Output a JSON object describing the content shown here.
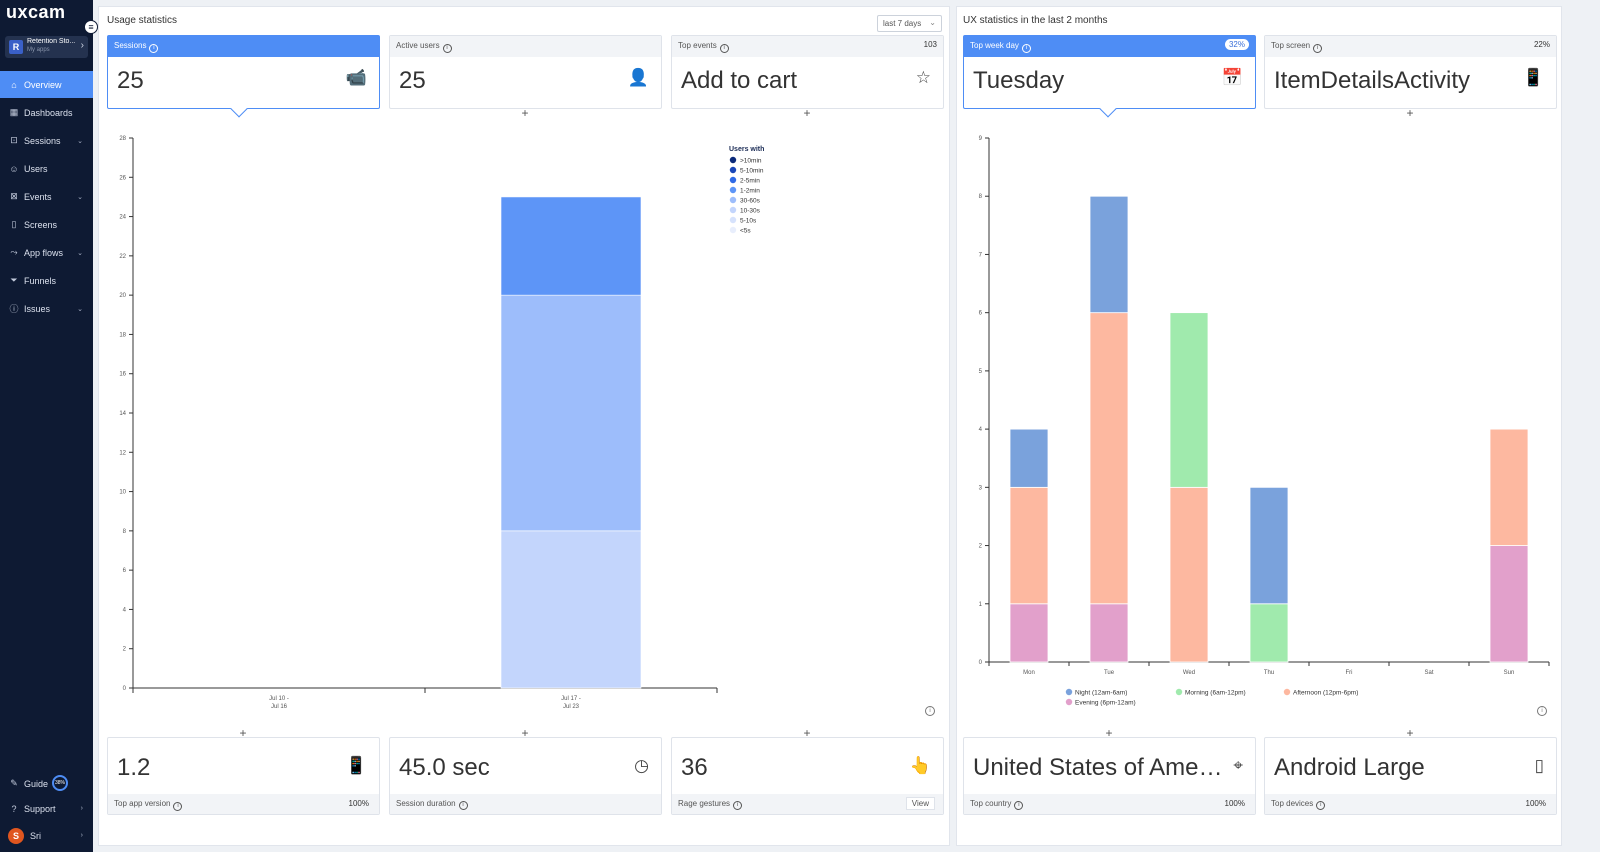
{
  "sidebar": {
    "logo": "uxcam",
    "app": {
      "initial": "R",
      "name": "Retention Sto...",
      "sub": "My apps"
    },
    "nav": [
      {
        "label": "Overview",
        "icon": "⌂",
        "icon_name": "home-icon",
        "active": true,
        "chevron": false
      },
      {
        "label": "Dashboards",
        "icon": "▦",
        "icon_name": "dashboard-icon",
        "chevron": false
      },
      {
        "label": "Sessions",
        "icon": "⊡",
        "icon_name": "sessions-icon",
        "chevron": true
      },
      {
        "label": "Users",
        "icon": "☺",
        "icon_name": "users-icon",
        "chevron": false
      },
      {
        "label": "Events",
        "icon": "⊠",
        "icon_name": "events-icon",
        "chevron": true
      },
      {
        "label": "Screens",
        "icon": "▯",
        "icon_name": "screens-icon",
        "chevron": false
      },
      {
        "label": "App flows",
        "icon": "⤳",
        "icon_name": "app-flows-icon",
        "chevron": true
      },
      {
        "label": "Funnels",
        "icon": "⏷",
        "icon_name": "funnels-icon",
        "chevron": false
      },
      {
        "label": "Issues",
        "icon": "ⓘ",
        "icon_name": "issues-icon",
        "chevron": true
      }
    ],
    "guide": {
      "label": "Guide",
      "pct": "38%"
    },
    "support": "Support",
    "user": {
      "initial": "S",
      "name": "Sri"
    }
  },
  "usage": {
    "title": "Usage statistics",
    "range": "last 7 days",
    "cards": [
      {
        "label": "Sessions",
        "value": "25",
        "pct": "",
        "icon": "📹",
        "icon_name": "camera-icon"
      },
      {
        "label": "Active users",
        "value": "25",
        "pct": "",
        "icon": "👤",
        "icon_name": "active-user-icon"
      },
      {
        "label": "Top events",
        "value": "Add to cart",
        "pct": "103",
        "icon": "☆",
        "icon_name": "star-icon"
      }
    ],
    "bottom": [
      {
        "label": "Top app version",
        "value": "1.2",
        "pct": "100%",
        "icon": "📱",
        "icon_name": "phone-version-icon"
      },
      {
        "label": "Session duration",
        "value": "45.0 sec",
        "pct": "",
        "icon": "◷",
        "icon_name": "clock-icon"
      },
      {
        "label": "Rage gestures",
        "value": "36",
        "pct": "",
        "action": "View",
        "icon": "👆",
        "icon_name": "rage-gesture-icon"
      }
    ]
  },
  "ux": {
    "title": "UX statistics in the last 2 months",
    "cards": [
      {
        "label": "Top week day",
        "value": "Tuesday",
        "pct": "32%",
        "icon": "📅",
        "icon_name": "calendar-icon"
      },
      {
        "label": "Top screen",
        "value": "ItemDetailsActivity",
        "pct": "22%",
        "icon": "📱",
        "icon_name": "mobile-screen-icon"
      }
    ],
    "bottom": [
      {
        "label": "Top country",
        "value": "United States of Ame…",
        "pct": "100%",
        "icon": "⌖",
        "icon_name": "location-pin-icon"
      },
      {
        "label": "Top devices",
        "value": "Android Large",
        "pct": "100%",
        "icon": "▯",
        "icon_name": "device-icon"
      }
    ]
  },
  "colors": {
    "accent": "#4e8df5",
    "sidebar": "#0e1a33"
  },
  "chart_data": [
    {
      "type": "bar",
      "stacked": true,
      "title": "",
      "categories": [
        [
          "Jul 10 -",
          "Jul 16"
        ],
        [
          "Jul 17 -",
          "Jul 23"
        ]
      ],
      "ylim": [
        0,
        28
      ],
      "yticks": [
        0,
        2,
        4,
        6,
        8,
        10,
        12,
        14,
        16,
        18,
        20,
        22,
        24,
        26,
        28
      ],
      "legend_title": "Users with",
      "legend_position": "top-right",
      "series": [
        {
          "name": "<5s",
          "color": "#e8eefc",
          "values": [
            0,
            0
          ]
        },
        {
          "name": "5-10s",
          "color": "#d6e2fc",
          "values": [
            0,
            0
          ]
        },
        {
          "name": "10-30s",
          "color": "#c3d5fc",
          "values": [
            0,
            8
          ]
        },
        {
          "name": "30-60s",
          "color": "#9dbdfb",
          "values": [
            0,
            12
          ]
        },
        {
          "name": "1-2min",
          "color": "#5d95f7",
          "values": [
            0,
            5
          ]
        },
        {
          "name": "2-5min",
          "color": "#2f6ae6",
          "values": [
            0,
            0
          ]
        },
        {
          "name": "5-10min",
          "color": "#1a47b8",
          "values": [
            0,
            0
          ]
        },
        {
          "name": ">10min",
          "color": "#0b2a7a",
          "values": [
            0,
            0
          ]
        }
      ]
    },
    {
      "type": "bar",
      "stacked": true,
      "title": "",
      "categories": [
        "Mon",
        "Tue",
        "Wed",
        "Thu",
        "Fri",
        "Sat",
        "Sun"
      ],
      "ylim": [
        0,
        9
      ],
      "yticks": [
        0,
        1,
        2,
        3,
        4,
        5,
        6,
        7,
        8,
        9
      ],
      "legend_position": "bottom",
      "series": [
        {
          "name": "Evening (6pm-12am)",
          "color": "#e2a0cb",
          "values": [
            1,
            1,
            0,
            0,
            0,
            0,
            2
          ]
        },
        {
          "name": "Afternoon (12pm-6pm)",
          "color": "#fdb8a0",
          "values": [
            2,
            5,
            3,
            0,
            0,
            0,
            2
          ]
        },
        {
          "name": "Morning (6am-12pm)",
          "color": "#a0eaad",
          "values": [
            0,
            0,
            3,
            1,
            0,
            0,
            0
          ]
        },
        {
          "name": "Night (12am-6am)",
          "color": "#7aa2dc",
          "values": [
            1,
            2,
            0,
            2,
            0,
            0,
            0
          ]
        }
      ],
      "legend_order": [
        "Night (12am-6am)",
        "Morning (6am-12pm)",
        "Afternoon (12pm-6pm)",
        "Evening (6pm-12am)"
      ]
    }
  ]
}
